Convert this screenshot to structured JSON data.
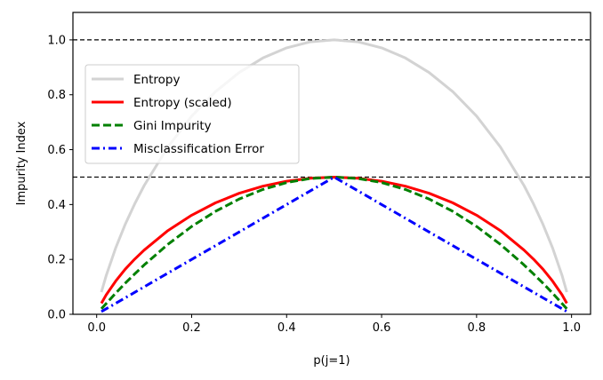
{
  "chart_data": {
    "type": "line",
    "title": "",
    "xlabel": "p(j=1)",
    "ylabel": "Impurity Index",
    "xlim": [
      -0.05,
      1.04
    ],
    "ylim": [
      0.0,
      1.1
    ],
    "xticks": [
      0.0,
      0.2,
      0.4,
      0.6,
      0.8,
      1.0
    ],
    "xtick_labels": [
      "0.0",
      "0.2",
      "0.4",
      "0.6",
      "0.8",
      "1.0"
    ],
    "yticks": [
      0.0,
      0.2,
      0.4,
      0.6,
      0.8,
      1.0
    ],
    "ytick_labels": [
      "0.0",
      "0.2",
      "0.4",
      "0.6",
      "0.8",
      "1.0"
    ],
    "grid": false,
    "legend_position": "upper-left",
    "reference_lines": [
      {
        "orientation": "horizontal",
        "y": 0.5,
        "style": "dashed",
        "color": "#000000"
      },
      {
        "orientation": "horizontal",
        "y": 1.0,
        "style": "dashed",
        "color": "#000000"
      }
    ],
    "x": [
      0.01,
      0.02,
      0.04,
      0.06,
      0.08,
      0.1,
      0.15,
      0.2,
      0.25,
      0.3,
      0.35,
      0.4,
      0.45,
      0.5,
      0.55,
      0.6,
      0.65,
      0.7,
      0.75,
      0.8,
      0.85,
      0.9,
      0.92,
      0.94,
      0.96,
      0.98,
      0.99
    ],
    "series": [
      {
        "name": "Entropy",
        "color": "#d3d3d3",
        "style": "solid",
        "values": [
          0.081,
          0.141,
          0.242,
          0.327,
          0.402,
          0.469,
          0.61,
          0.722,
          0.811,
          0.881,
          0.934,
          0.971,
          0.993,
          1.0,
          0.993,
          0.971,
          0.934,
          0.881,
          0.811,
          0.722,
          0.61,
          0.469,
          0.402,
          0.327,
          0.242,
          0.141,
          0.081
        ]
      },
      {
        "name": "Entropy (scaled)",
        "color": "#ff0000",
        "style": "solid",
        "values": [
          0.04,
          0.071,
          0.121,
          0.164,
          0.201,
          0.234,
          0.305,
          0.361,
          0.406,
          0.441,
          0.467,
          0.485,
          0.496,
          0.5,
          0.496,
          0.485,
          0.467,
          0.441,
          0.406,
          0.361,
          0.305,
          0.234,
          0.201,
          0.164,
          0.121,
          0.071,
          0.04
        ]
      },
      {
        "name": "Gini Impurity",
        "color": "#008000",
        "style": "dashed",
        "values": [
          0.02,
          0.039,
          0.077,
          0.113,
          0.147,
          0.18,
          0.255,
          0.32,
          0.375,
          0.42,
          0.455,
          0.48,
          0.495,
          0.5,
          0.495,
          0.48,
          0.455,
          0.42,
          0.375,
          0.32,
          0.255,
          0.18,
          0.147,
          0.113,
          0.077,
          0.039,
          0.02
        ]
      },
      {
        "name": "Misclassification Error",
        "color": "#0000ff",
        "style": "dashdot",
        "values": [
          0.01,
          0.02,
          0.04,
          0.06,
          0.08,
          0.1,
          0.15,
          0.2,
          0.25,
          0.3,
          0.35,
          0.4,
          0.45,
          0.5,
          0.45,
          0.4,
          0.35,
          0.3,
          0.25,
          0.2,
          0.15,
          0.1,
          0.08,
          0.06,
          0.04,
          0.02,
          0.01
        ]
      }
    ]
  }
}
